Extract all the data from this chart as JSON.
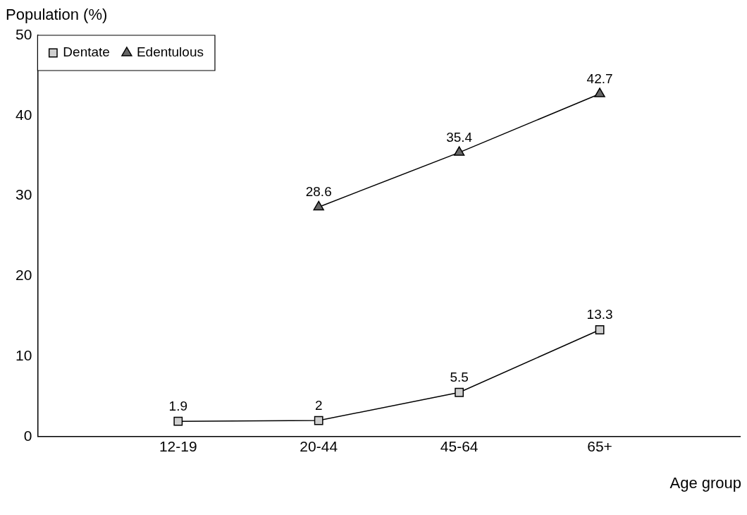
{
  "chart_data": {
    "type": "line",
    "xlabel": "Age group",
    "ylabel": "Population (%)",
    "categories": [
      "12-19",
      "20-44",
      "45-64",
      "65+"
    ],
    "series": [
      {
        "name": "Dentate",
        "color": "#000000",
        "marker": "square",
        "values": [
          1.9,
          2,
          5.5,
          13.3
        ]
      },
      {
        "name": "Edentulous",
        "color": "#000000",
        "marker": "triangle",
        "values": [
          null,
          28.6,
          35.4,
          42.7
        ]
      }
    ],
    "ylim": [
      0,
      50
    ],
    "yticks": [
      0,
      10,
      20,
      30,
      40,
      50
    ],
    "grid": false,
    "legend": "top left",
    "data_labels": true
  }
}
